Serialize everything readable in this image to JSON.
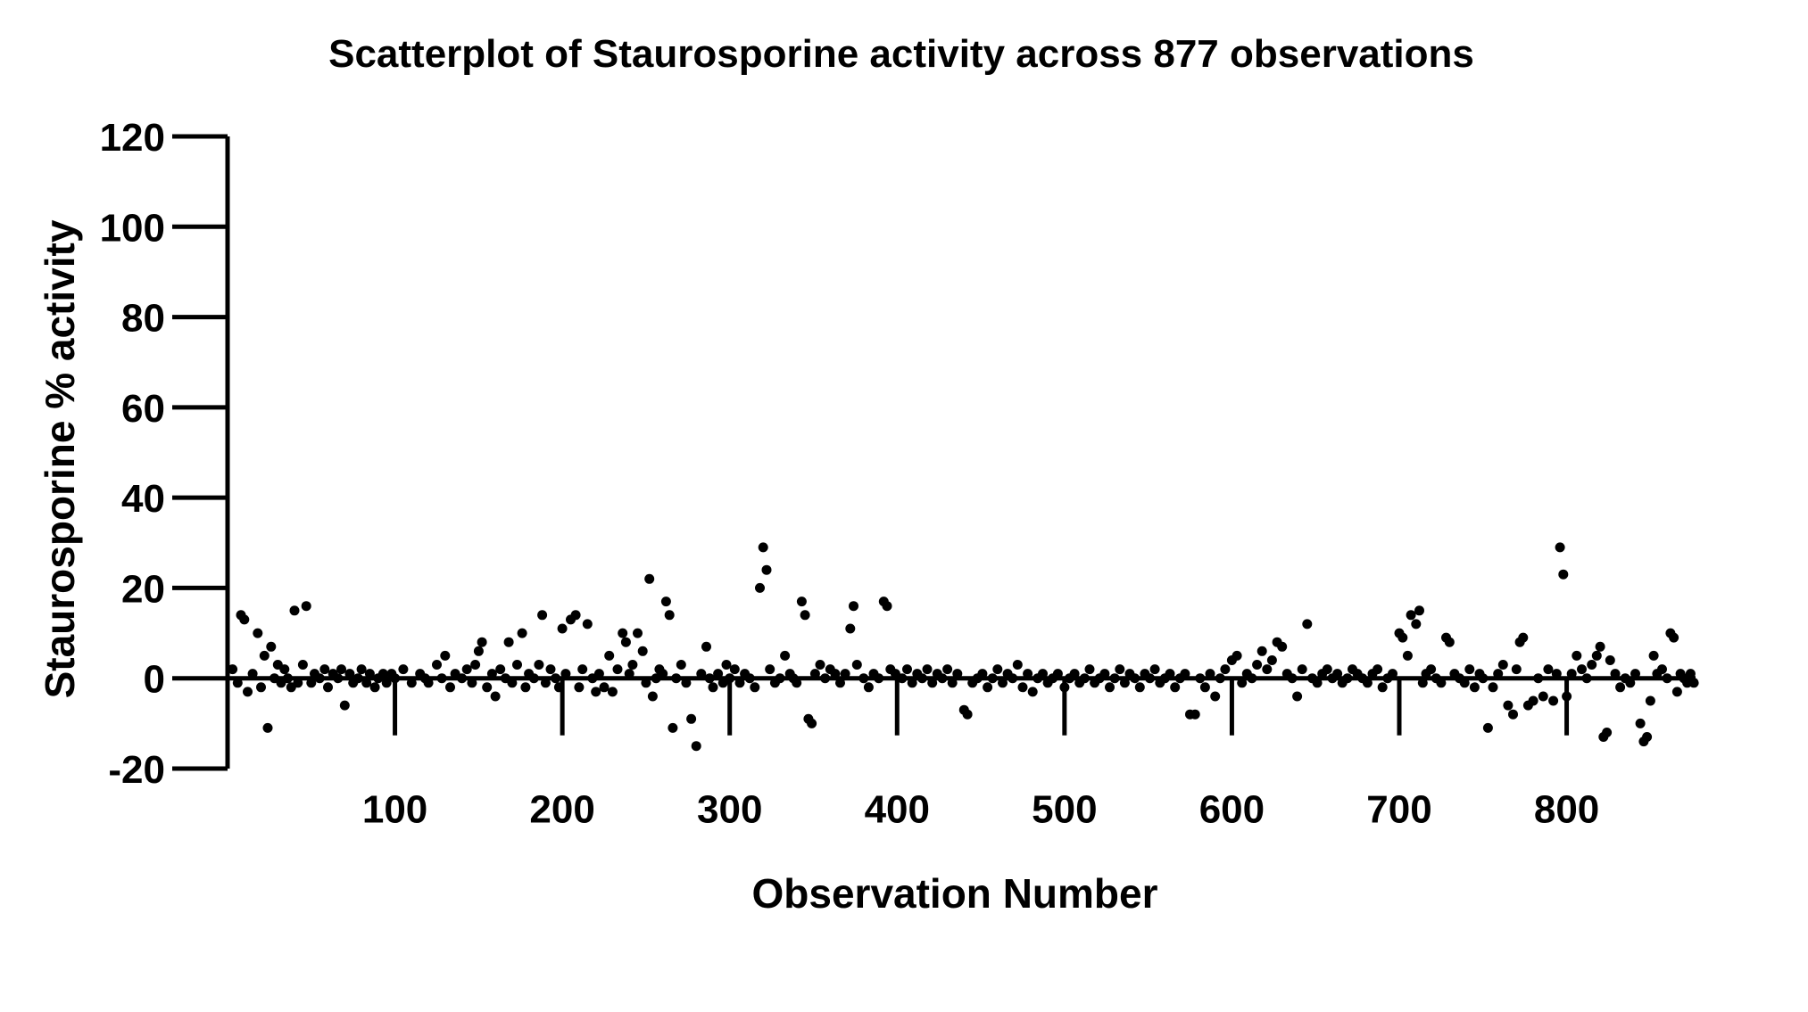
{
  "chart_data": {
    "type": "scatter",
    "title": "Scatterplot of Staurosporine activity  across 877 observations",
    "xlabel": "Observation Number",
    "ylabel": "Staurosporine % activity",
    "xlim": [
      0,
      877
    ],
    "ylim": [
      -20,
      120
    ],
    "xticks": [
      100,
      200,
      300,
      400,
      500,
      600,
      700,
      800
    ],
    "yticks": [
      -20,
      0,
      20,
      40,
      60,
      80,
      100,
      120
    ],
    "grid": false,
    "legend": "none",
    "marker_color": "#000000",
    "series": [
      {
        "points": [
          [
            3,
            2
          ],
          [
            6,
            -1
          ],
          [
            8,
            14
          ],
          [
            10,
            13
          ],
          [
            12,
            -3
          ],
          [
            15,
            1
          ],
          [
            18,
            10
          ],
          [
            20,
            -2
          ],
          [
            22,
            5
          ],
          [
            24,
            -11
          ],
          [
            26,
            7
          ],
          [
            28,
            0
          ],
          [
            30,
            3
          ],
          [
            32,
            -1
          ],
          [
            34,
            2
          ],
          [
            36,
            0
          ],
          [
            38,
            -2
          ],
          [
            40,
            15
          ],
          [
            42,
            -1
          ],
          [
            45,
            3
          ],
          [
            47,
            16
          ],
          [
            50,
            -1
          ],
          [
            52,
            1
          ],
          [
            55,
            0
          ],
          [
            58,
            2
          ],
          [
            60,
            -2
          ],
          [
            63,
            1
          ],
          [
            66,
            0
          ],
          [
            68,
            2
          ],
          [
            70,
            -6
          ],
          [
            73,
            1
          ],
          [
            75,
            -1
          ],
          [
            78,
            0
          ],
          [
            80,
            2
          ],
          [
            83,
            -1
          ],
          [
            85,
            1
          ],
          [
            88,
            -2
          ],
          [
            90,
            0
          ],
          [
            93,
            1
          ],
          [
            95,
            -1
          ],
          [
            98,
            1
          ],
          [
            100,
            0
          ],
          [
            105,
            2
          ],
          [
            110,
            -1
          ],
          [
            115,
            1
          ],
          [
            118,
            0
          ],
          [
            120,
            -1
          ],
          [
            125,
            3
          ],
          [
            128,
            0
          ],
          [
            130,
            5
          ],
          [
            133,
            -2
          ],
          [
            136,
            1
          ],
          [
            140,
            0
          ],
          [
            143,
            2
          ],
          [
            146,
            -1
          ],
          [
            148,
            3
          ],
          [
            150,
            6
          ],
          [
            152,
            8
          ],
          [
            155,
            -2
          ],
          [
            158,
            1
          ],
          [
            160,
            -4
          ],
          [
            163,
            2
          ],
          [
            166,
            0
          ],
          [
            168,
            8
          ],
          [
            170,
            -1
          ],
          [
            173,
            3
          ],
          [
            176,
            10
          ],
          [
            178,
            -2
          ],
          [
            180,
            1
          ],
          [
            183,
            0
          ],
          [
            186,
            3
          ],
          [
            188,
            14
          ],
          [
            190,
            -1
          ],
          [
            193,
            2
          ],
          [
            196,
            0
          ],
          [
            198,
            -2
          ],
          [
            200,
            11
          ],
          [
            202,
            1
          ],
          [
            205,
            13
          ],
          [
            208,
            14
          ],
          [
            210,
            -2
          ],
          [
            212,
            2
          ],
          [
            215,
            12
          ],
          [
            218,
            0
          ],
          [
            220,
            -3
          ],
          [
            222,
            1
          ],
          [
            225,
            -2
          ],
          [
            228,
            5
          ],
          [
            230,
            -3
          ],
          [
            233,
            2
          ],
          [
            236,
            10
          ],
          [
            238,
            8
          ],
          [
            240,
            1
          ],
          [
            242,
            3
          ],
          [
            245,
            10
          ],
          [
            248,
            6
          ],
          [
            250,
            -1
          ],
          [
            252,
            22
          ],
          [
            254,
            -4
          ],
          [
            256,
            0
          ],
          [
            258,
            2
          ],
          [
            260,
            1
          ],
          [
            262,
            17
          ],
          [
            264,
            14
          ],
          [
            266,
            -11
          ],
          [
            268,
            0
          ],
          [
            271,
            3
          ],
          [
            274,
            -1
          ],
          [
            277,
            -9
          ],
          [
            280,
            -15
          ],
          [
            283,
            1
          ],
          [
            286,
            7
          ],
          [
            288,
            0
          ],
          [
            290,
            -2
          ],
          [
            293,
            1
          ],
          [
            296,
            -1
          ],
          [
            298,
            3
          ],
          [
            300,
            0
          ],
          [
            303,
            2
          ],
          [
            306,
            -1
          ],
          [
            309,
            1
          ],
          [
            312,
            0
          ],
          [
            315,
            -2
          ],
          [
            318,
            20
          ],
          [
            320,
            29
          ],
          [
            322,
            24
          ],
          [
            324,
            2
          ],
          [
            327,
            -1
          ],
          [
            330,
            0
          ],
          [
            333,
            5
          ],
          [
            336,
            1
          ],
          [
            338,
            0
          ],
          [
            340,
            -1
          ],
          [
            343,
            17
          ],
          [
            345,
            14
          ],
          [
            347,
            -9
          ],
          [
            349,
            -10
          ],
          [
            351,
            1
          ],
          [
            354,
            3
          ],
          [
            357,
            0
          ],
          [
            360,
            2
          ],
          [
            363,
            1
          ],
          [
            366,
            -1
          ],
          [
            369,
            1
          ],
          [
            372,
            11
          ],
          [
            374,
            16
          ],
          [
            376,
            3
          ],
          [
            380,
            0
          ],
          [
            383,
            -2
          ],
          [
            386,
            1
          ],
          [
            389,
            0
          ],
          [
            392,
            17
          ],
          [
            394,
            16
          ],
          [
            396,
            2
          ],
          [
            399,
            1
          ],
          [
            403,
            0
          ],
          [
            406,
            2
          ],
          [
            409,
            -1
          ],
          [
            412,
            1
          ],
          [
            415,
            0
          ],
          [
            418,
            2
          ],
          [
            421,
            -1
          ],
          [
            424,
            1
          ],
          [
            427,
            0
          ],
          [
            430,
            2
          ],
          [
            433,
            -1
          ],
          [
            436,
            1
          ],
          [
            440,
            -7
          ],
          [
            442,
            -8
          ],
          [
            445,
            -1
          ],
          [
            448,
            0
          ],
          [
            451,
            1
          ],
          [
            454,
            -2
          ],
          [
            457,
            0
          ],
          [
            460,
            2
          ],
          [
            463,
            -1
          ],
          [
            466,
            1
          ],
          [
            469,
            0
          ],
          [
            472,
            3
          ],
          [
            475,
            -2
          ],
          [
            478,
            1
          ],
          [
            481,
            -3
          ],
          [
            484,
            0
          ],
          [
            487,
            1
          ],
          [
            490,
            -1
          ],
          [
            493,
            0
          ],
          [
            496,
            1
          ],
          [
            500,
            -2
          ],
          [
            503,
            0
          ],
          [
            506,
            1
          ],
          [
            509,
            -1
          ],
          [
            512,
            0
          ],
          [
            515,
            2
          ],
          [
            518,
            -1
          ],
          [
            521,
            0
          ],
          [
            524,
            1
          ],
          [
            527,
            -2
          ],
          [
            530,
            0
          ],
          [
            533,
            2
          ],
          [
            536,
            -1
          ],
          [
            539,
            1
          ],
          [
            542,
            0
          ],
          [
            545,
            -2
          ],
          [
            548,
            1
          ],
          [
            551,
            0
          ],
          [
            554,
            2
          ],
          [
            557,
            -1
          ],
          [
            560,
            0
          ],
          [
            563,
            1
          ],
          [
            566,
            -2
          ],
          [
            569,
            0
          ],
          [
            572,
            1
          ],
          [
            575,
            -8
          ],
          [
            578,
            -8
          ],
          [
            581,
            0
          ],
          [
            584,
            -2
          ],
          [
            587,
            1
          ],
          [
            590,
            -4
          ],
          [
            593,
            0
          ],
          [
            596,
            2
          ],
          [
            600,
            4
          ],
          [
            603,
            5
          ],
          [
            606,
            -1
          ],
          [
            609,
            1
          ],
          [
            612,
            0
          ],
          [
            615,
            3
          ],
          [
            618,
            6
          ],
          [
            621,
            2
          ],
          [
            624,
            4
          ],
          [
            627,
            8
          ],
          [
            630,
            7
          ],
          [
            633,
            1
          ],
          [
            636,
            0
          ],
          [
            639,
            -4
          ],
          [
            642,
            2
          ],
          [
            645,
            12
          ],
          [
            648,
            0
          ],
          [
            651,
            -1
          ],
          [
            654,
            1
          ],
          [
            657,
            2
          ],
          [
            660,
            0
          ],
          [
            663,
            1
          ],
          [
            666,
            -1
          ],
          [
            669,
            0
          ],
          [
            672,
            2
          ],
          [
            675,
            1
          ],
          [
            678,
            0
          ],
          [
            681,
            -1
          ],
          [
            684,
            1
          ],
          [
            687,
            2
          ],
          [
            690,
            -2
          ],
          [
            693,
            0
          ],
          [
            696,
            1
          ],
          [
            700,
            10
          ],
          [
            702,
            9
          ],
          [
            705,
            5
          ],
          [
            707,
            14
          ],
          [
            710,
            12
          ],
          [
            712,
            15
          ],
          [
            714,
            -1
          ],
          [
            716,
            1
          ],
          [
            719,
            2
          ],
          [
            722,
            0
          ],
          [
            725,
            -1
          ],
          [
            728,
            9
          ],
          [
            730,
            8
          ],
          [
            733,
            1
          ],
          [
            736,
            0
          ],
          [
            739,
            -1
          ],
          [
            742,
            2
          ],
          [
            745,
            -2
          ],
          [
            748,
            1
          ],
          [
            750,
            0
          ],
          [
            753,
            -11
          ],
          [
            756,
            -2
          ],
          [
            759,
            1
          ],
          [
            762,
            3
          ],
          [
            765,
            -6
          ],
          [
            768,
            -8
          ],
          [
            770,
            2
          ],
          [
            772,
            8
          ],
          [
            774,
            9
          ],
          [
            777,
            -6
          ],
          [
            780,
            -5
          ],
          [
            783,
            0
          ],
          [
            786,
            -4
          ],
          [
            789,
            2
          ],
          [
            792,
            -5
          ],
          [
            794,
            1
          ],
          [
            796,
            29
          ],
          [
            798,
            23
          ],
          [
            800,
            -4
          ],
          [
            803,
            1
          ],
          [
            806,
            5
          ],
          [
            809,
            2
          ],
          [
            812,
            0
          ],
          [
            815,
            3
          ],
          [
            818,
            5
          ],
          [
            820,
            7
          ],
          [
            822,
            -13
          ],
          [
            824,
            -12
          ],
          [
            826,
            4
          ],
          [
            829,
            1
          ],
          [
            832,
            -2
          ],
          [
            835,
            0
          ],
          [
            838,
            -1
          ],
          [
            841,
            1
          ],
          [
            844,
            -10
          ],
          [
            846,
            -14
          ],
          [
            848,
            -13
          ],
          [
            850,
            -5
          ],
          [
            852,
            5
          ],
          [
            854,
            1
          ],
          [
            857,
            2
          ],
          [
            860,
            0
          ],
          [
            862,
            10
          ],
          [
            864,
            9
          ],
          [
            866,
            -3
          ],
          [
            868,
            1
          ],
          [
            870,
            0
          ],
          [
            872,
            -1
          ],
          [
            874,
            1
          ],
          [
            876,
            -1
          ]
        ]
      }
    ]
  }
}
